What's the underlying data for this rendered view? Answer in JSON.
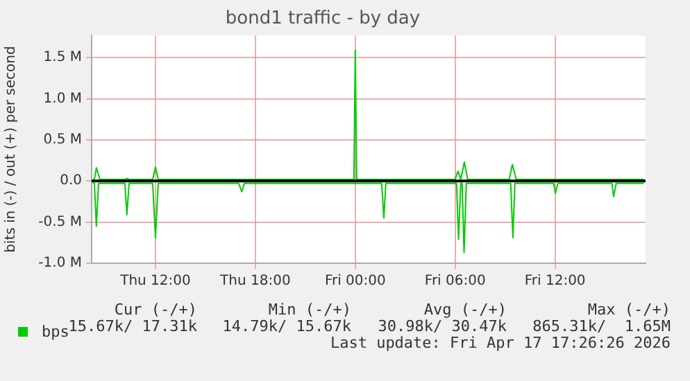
{
  "chart_data": {
    "type": "line",
    "title": "bond1 traffic - by day",
    "ylabel": "bits in (-) / out (+) per second",
    "xlim": [
      "2026-04-16T08:10",
      "2026-04-17T17:26"
    ],
    "xticks": [
      {
        "value": "2026-04-16T12:00",
        "label": "Thu 12:00"
      },
      {
        "value": "2026-04-16T18:00",
        "label": "Thu 18:00"
      },
      {
        "value": "2026-04-17T00:00",
        "label": "Fri 00:00"
      },
      {
        "value": "2026-04-17T06:00",
        "label": "Fri 06:00"
      },
      {
        "value": "2026-04-17T12:00",
        "label": "Fri 12:00"
      }
    ],
    "ylim": [
      -1.0,
      1.77
    ],
    "yticks": [
      {
        "value": -1.0,
        "label": "-1.0 M"
      },
      {
        "value": -0.5,
        "label": "-0.5 M"
      },
      {
        "value": 0,
        "label": "0.0"
      },
      {
        "value": 0.5,
        "label": "0.5 M"
      },
      {
        "value": 1.0,
        "label": "1.0 M"
      },
      {
        "value": 1.5,
        "label": "1.5 M"
      }
    ],
    "grid": true,
    "legend": "bottom",
    "marker": "none",
    "line_style": "solid",
    "ref_lines": [
      {
        "axis": "y",
        "value": 0,
        "color": "#000000"
      }
    ],
    "series": [
      {
        "name": "bps",
        "color": "#00cc00",
        "x": [
          "2026-04-16T08:15",
          "2026-04-16T08:20",
          "2026-04-16T08:27",
          "2026-04-16T08:40",
          "2026-04-16T10:10",
          "2026-04-16T10:17",
          "2026-04-16T10:25",
          "2026-04-16T11:50",
          "2026-04-16T12:00",
          "2026-04-16T12:10",
          "2026-04-16T23:55",
          "2026-04-17T00:00",
          "2026-04-17T00:05",
          "2026-04-17T06:00",
          "2026-04-17T06:10",
          "2026-04-17T06:20",
          "2026-04-17T06:33",
          "2026-04-17T06:45",
          "2026-04-17T09:15",
          "2026-04-17T09:26",
          "2026-04-17T09:40",
          "2026-04-17T17:20"
        ],
        "values": [
          0.02,
          0.02,
          0.16,
          0.02,
          0.02,
          0.03,
          0.02,
          0.02,
          0.17,
          0.02,
          0.02,
          1.59,
          0.02,
          0.02,
          0.12,
          0.02,
          0.23,
          0.02,
          0.02,
          0.2,
          0.02,
          0.02
        ]
      },
      {
        "color": "#00cc00",
        "x": [
          "2026-04-16T08:15",
          "2026-04-16T08:20",
          "2026-04-16T08:27",
          "2026-04-16T08:35",
          "2026-04-16T10:10",
          "2026-04-16T10:17",
          "2026-04-16T10:25",
          "2026-04-16T11:50",
          "2026-04-16T12:00",
          "2026-04-16T12:10",
          "2026-04-16T17:00",
          "2026-04-16T17:11",
          "2026-04-16T17:20",
          "2026-04-17T01:35",
          "2026-04-17T01:43",
          "2026-04-17T01:50",
          "2026-04-17T06:05",
          "2026-04-17T06:12",
          "2026-04-17T06:20",
          "2026-04-17T06:25",
          "2026-04-17T06:32",
          "2026-04-17T06:40",
          "2026-04-17T09:20",
          "2026-04-17T09:28",
          "2026-04-17T09:35",
          "2026-04-17T11:55",
          "2026-04-17T12:01",
          "2026-04-17T12:10",
          "2026-04-17T15:25",
          "2026-04-17T15:31",
          "2026-04-17T15:40",
          "2026-04-17T17:20"
        ],
        "values": [
          -0.03,
          -0.03,
          -0.55,
          -0.03,
          -0.03,
          -0.41,
          -0.03,
          -0.03,
          -0.69,
          -0.03,
          -0.03,
          -0.13,
          -0.03,
          -0.03,
          -0.45,
          -0.03,
          -0.03,
          -0.71,
          -0.03,
          -0.03,
          -0.87,
          -0.03,
          -0.03,
          -0.69,
          -0.03,
          -0.03,
          -0.15,
          -0.03,
          -0.03,
          -0.19,
          -0.03,
          -0.03
        ]
      }
    ],
    "annotations": [
      "Cur (-/+)",
      "Min (-/+)",
      "Avg (-/+)",
      "Max (-/+)",
      "15.67k/ 17.31k",
      "14.79k/ 15.67k",
      "30.98k/ 30.47k",
      "865.31k/  1.65M",
      "Last update: Fri Apr 17 17:26:26 2026"
    ]
  }
}
